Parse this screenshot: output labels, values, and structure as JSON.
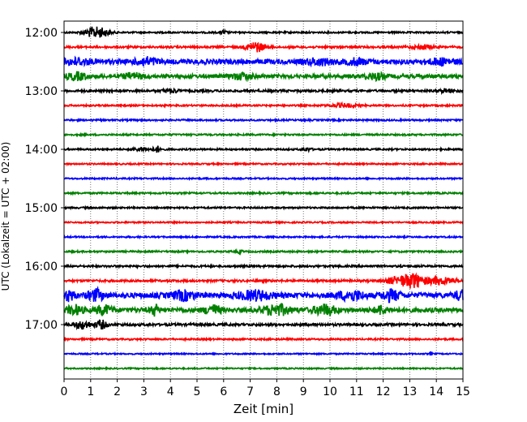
{
  "chart_data": {
    "type": "line",
    "subtype": "helicorder",
    "xlabel": "Zeit  [min]",
    "ylabel": "UTC (Lokalzeit = UTC + 02:00)",
    "xlim": [
      0,
      15
    ],
    "x_ticks": [
      "0",
      "1",
      "2",
      "3",
      "4",
      "5",
      "6",
      "7",
      "8",
      "9",
      "10",
      "11",
      "12",
      "13",
      "14",
      "15"
    ],
    "grid": "vertical dotted lines at each minute",
    "row_minutes": 15,
    "hour_labels": [
      "12:00",
      "13:00",
      "14:00",
      "15:00",
      "16:00",
      "17:00"
    ],
    "trace_colors": [
      "#000000",
      "#ff0000",
      "#0000ff",
      "#008000"
    ],
    "rows": [
      {
        "start": "12:00",
        "color": "#000000",
        "level": 1,
        "events": [
          {
            "t": 1.1,
            "amp": 6,
            "dur": 0.35
          },
          {
            "t": 1.5,
            "amp": 3,
            "dur": 0.3
          },
          {
            "t": 6.0,
            "amp": 2.5,
            "dur": 0.1
          }
        ]
      },
      {
        "start": "12:15",
        "color": "#ff0000",
        "level": 1.2,
        "events": [
          {
            "t": 7.2,
            "amp": 6,
            "dur": 0.35
          },
          {
            "t": 13.5,
            "amp": 2.5,
            "dur": 0.4
          }
        ]
      },
      {
        "start": "12:30",
        "color": "#0000ff",
        "level": 3,
        "events": [
          {
            "t": 0.5,
            "amp": 3,
            "dur": 0.5
          },
          {
            "t": 3.1,
            "amp": 4,
            "dur": 0.4
          },
          {
            "t": 9.6,
            "amp": 3,
            "dur": 0.5
          },
          {
            "t": 11.0,
            "amp": 3,
            "dur": 0.4
          },
          {
            "t": 14.2,
            "amp": 3,
            "dur": 0.5
          }
        ]
      },
      {
        "start": "12:45",
        "color": "#008000",
        "level": 2.3,
        "events": [
          {
            "t": 0.5,
            "amp": 4,
            "dur": 0.4
          },
          {
            "t": 2.6,
            "amp": 3,
            "dur": 0.4
          },
          {
            "t": 6.7,
            "amp": 3.5,
            "dur": 0.4
          },
          {
            "t": 11.7,
            "amp": 3.5,
            "dur": 0.4
          }
        ]
      },
      {
        "start": "13:00",
        "color": "#000000",
        "level": 1.3,
        "events": [
          {
            "t": 4.0,
            "amp": 2.5,
            "dur": 0.3
          },
          {
            "t": 14.4,
            "amp": 2,
            "dur": 0.3
          }
        ]
      },
      {
        "start": "13:15",
        "color": "#ff0000",
        "level": 1,
        "events": [
          {
            "t": 10.5,
            "amp": 2,
            "dur": 0.5
          }
        ]
      },
      {
        "start": "13:30",
        "color": "#0000ff",
        "level": 1,
        "events": []
      },
      {
        "start": "13:45",
        "color": "#008000",
        "level": 1,
        "events": []
      },
      {
        "start": "14:00",
        "color": "#000000",
        "level": 1,
        "events": [
          {
            "t": 3.5,
            "amp": 3.5,
            "dur": 0.15
          },
          {
            "t": 2.9,
            "amp": 2,
            "dur": 0.3
          },
          {
            "t": 9.1,
            "amp": 2,
            "dur": 0.2
          }
        ]
      },
      {
        "start": "14:15",
        "color": "#ff0000",
        "level": 0.9,
        "events": []
      },
      {
        "start": "14:30",
        "color": "#0000ff",
        "level": 0.9,
        "events": []
      },
      {
        "start": "14:45",
        "color": "#008000",
        "level": 1,
        "events": []
      },
      {
        "start": "15:00",
        "color": "#000000",
        "level": 1,
        "events": []
      },
      {
        "start": "15:15",
        "color": "#ff0000",
        "level": 0.9,
        "events": []
      },
      {
        "start": "15:30",
        "color": "#0000ff",
        "level": 0.9,
        "events": []
      },
      {
        "start": "15:45",
        "color": "#008000",
        "level": 1,
        "events": [
          {
            "t": 6.6,
            "amp": 2,
            "dur": 0.1
          }
        ]
      },
      {
        "start": "16:00",
        "color": "#000000",
        "level": 1.2,
        "events": []
      },
      {
        "start": "16:15",
        "color": "#ff0000",
        "level": 1.3,
        "events": [
          {
            "t": 13.1,
            "amp": 9,
            "dur": 0.45
          },
          {
            "t": 12.4,
            "amp": 3,
            "dur": 0.4
          },
          {
            "t": 14.0,
            "amp": 4,
            "dur": 0.35
          },
          {
            "t": 14.5,
            "amp": 3,
            "dur": 0.3
          }
        ]
      },
      {
        "start": "16:30",
        "color": "#0000ff",
        "level": 3.2,
        "events": [
          {
            "t": 0.2,
            "amp": 6,
            "dur": 0.2
          },
          {
            "t": 1.2,
            "amp": 6,
            "dur": 0.3
          },
          {
            "t": 4.5,
            "amp": 5,
            "dur": 0.4
          },
          {
            "t": 7.2,
            "amp": 5,
            "dur": 0.6
          },
          {
            "t": 10.8,
            "amp": 5,
            "dur": 0.5
          },
          {
            "t": 12.3,
            "amp": 6,
            "dur": 0.3
          },
          {
            "t": 14.9,
            "amp": 5,
            "dur": 0.2
          }
        ]
      },
      {
        "start": "16:45",
        "color": "#008000",
        "level": 2.8,
        "events": [
          {
            "t": 0.4,
            "amp": 5,
            "dur": 0.3
          },
          {
            "t": 1.5,
            "amp": 5,
            "dur": 0.3
          },
          {
            "t": 3.4,
            "amp": 6,
            "dur": 0.15
          },
          {
            "t": 5.6,
            "amp": 5,
            "dur": 0.3
          },
          {
            "t": 8.0,
            "amp": 6,
            "dur": 0.5
          },
          {
            "t": 9.8,
            "amp": 6,
            "dur": 0.4
          },
          {
            "t": 11.9,
            "amp": 5,
            "dur": 0.2
          }
        ]
      },
      {
        "start": "17:00",
        "color": "#000000",
        "level": 1.5,
        "events": [
          {
            "t": 0.7,
            "amp": 5,
            "dur": 0.3
          },
          {
            "t": 1.4,
            "amp": 5,
            "dur": 0.2
          }
        ]
      },
      {
        "start": "17:15",
        "color": "#ff0000",
        "level": 1,
        "events": []
      },
      {
        "start": "17:30",
        "color": "#0000ff",
        "level": 0.8,
        "events": [
          {
            "t": 13.8,
            "amp": 2.5,
            "dur": 0.05
          }
        ]
      },
      {
        "start": "17:45",
        "color": "#008000",
        "level": 0.8,
        "events": []
      }
    ]
  }
}
